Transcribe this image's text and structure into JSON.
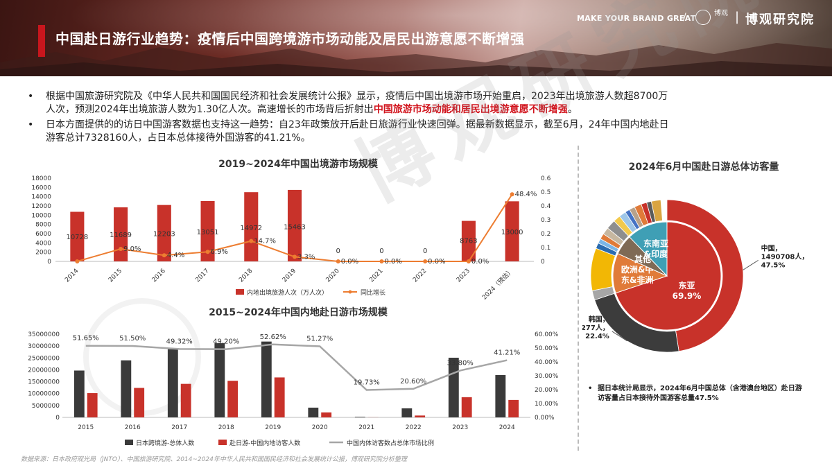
{
  "header": {
    "title": "中国赴日游行业趋势：疫情后中国跨境游市场动能及居民出游意愿不断增强",
    "slogan": "MAKE YOUR BRAND GREAT",
    "slash": "/",
    "logo_text": "博观",
    "separator": "|",
    "brand_name": "博观研究院"
  },
  "bullets": {
    "b1_part1": "根据中国旅游研究院及《中华人民共和国国民经济和社会发展统计公报》显示，疫情后中国出境游市场开始重启，2023年出境旅游人数超8700万人次，预测2024年出境旅游人数为1.30亿人次。高速增长的市场背后折射出",
    "b1_highlight": "中国旅游市场动能和居民出境游意愿不断增强",
    "b1_part2": "。",
    "b2": "日本方面提供的的访日中国游客数据也支持这一趋势：自23年政策放开后赴日旅游行业快速回弹。据最新数据显示，截至6月，24年中国内地赴日游客总计7328160人，占日本总体接待外国游客的41.21%。"
  },
  "chart_titles": {
    "c1": "2019~2024年中国出境游市场规模",
    "c2": "2015~2024年中国内地赴日游市场规模",
    "c3": "2024年6月中国赴日游总体访客量"
  },
  "watermark": "博观研究院",
  "pie_note": "据日本统计局显示，2024年6月中国总体（含港澳台地区）赴日游访客量占日本接待外国游客总量47.5%",
  "source": "数据来源：日本政府观光局（JNTO）、中国旅游研究院、2014~2024年中华人民共和国国民经济和社会发展统计公报，博观研究院分析整理",
  "colors": {
    "red": "#c8322a",
    "orange": "#ed7d31",
    "dark": "#3a3a3a",
    "gray": "#a6a6a6"
  },
  "chart_data": [
    {
      "type": "bar",
      "title": "2019~2024年中国出境游市场规模",
      "categories": [
        "2014",
        "2015",
        "2016",
        "2017",
        "2018",
        "2019",
        "2020",
        "2021",
        "2022",
        "2023",
        "2024（预估）"
      ],
      "series": [
        {
          "name": "内地出境旅游人次（万人次）",
          "kind": "bar",
          "axis": "left",
          "values": [
            10728,
            11689,
            12203,
            13051,
            14972,
            15463,
            0,
            0,
            0,
            8763,
            13000
          ],
          "labels": [
            "10728",
            "11689",
            "12203",
            "13051",
            "14972",
            "15463",
            "0",
            "0",
            "0",
            "8763",
            "13000"
          ]
        },
        {
          "name": "同比增长",
          "kind": "line",
          "axis": "right",
          "values": [
            0,
            0.09,
            0.044,
            0.069,
            0.147,
            0.033,
            0,
            0,
            0,
            0,
            0.484
          ],
          "labels": [
            "",
            "9.0%",
            "4.4%",
            "6.9%",
            "14.7%",
            "3.3%",
            "0.0%",
            "0.0%",
            "0.0%",
            "0.0%",
            "48.4%"
          ]
        }
      ],
      "yticks_left": [
        "0",
        "2000",
        "4000",
        "6000",
        "8000",
        "10000",
        "12000",
        "14000",
        "16000",
        "18000"
      ],
      "yticks_right": [
        "0",
        "0.1",
        "0.2",
        "0.3",
        "0.4",
        "0.5",
        "0.6"
      ],
      "ylim_left": [
        0,
        18000
      ],
      "ylim_right": [
        0,
        0.6
      ]
    },
    {
      "type": "bar",
      "title": "2015~2024年中国内地赴日游市场规模",
      "categories": [
        "2015",
        "2016",
        "2017",
        "2018",
        "2019",
        "2020",
        "2021",
        "2022",
        "2023",
        "2024"
      ],
      "series": [
        {
          "name": "日本跨境游-总体人数",
          "kind": "bar",
          "axis": "left",
          "values": [
            19700000,
            24000000,
            28700000,
            31200000,
            31900000,
            4100000,
            250000,
            3800000,
            25100000,
            17800000
          ]
        },
        {
          "name": "赴日游-中国内地访客人数",
          "kind": "bar",
          "axis": "left",
          "values": [
            10200000,
            12400000,
            14100000,
            15400000,
            16800000,
            2100000,
            50000,
            780000,
            8500000,
            7328160
          ]
        },
        {
          "name": "中国内体访客数占总体市场比例",
          "kind": "line",
          "axis": "right",
          "values": [
            0.5165,
            0.515,
            0.4932,
            0.492,
            0.5262,
            0.5127,
            0.1973,
            0.206,
            0.338,
            0.4121
          ],
          "labels": [
            "51.65%",
            "51.50%",
            "49.32%",
            "49.20%",
            "52.62%",
            "51.27%",
            "19.73%",
            "20.60%",
            "33.80%",
            "41.21%"
          ]
        }
      ],
      "yticks_left": [
        "0",
        "5000000",
        "10000000",
        "15000000",
        "20000000",
        "25000000",
        "30000000",
        "35000000"
      ],
      "yticks_right": [
        "0.00%",
        "10.00%",
        "20.00%",
        "30.00%",
        "40.00%",
        "50.00%",
        "60.00%"
      ],
      "ylim_left": [
        0,
        35000000
      ],
      "ylim_right": [
        0,
        0.6
      ]
    },
    {
      "type": "pie",
      "title": "2024年6月中国赴日游总体访客量",
      "inner": [
        {
          "name": "东亚",
          "share": 0.699,
          "label": "东亚\n69.9%",
          "color": "#c8322a"
        },
        {
          "name": "欧洲&中东&非洲",
          "share": 0.119,
          "label": "欧洲&中\n东&非洲",
          "color": "#e07b39"
        },
        {
          "name": "其他",
          "share": 0.06,
          "label": "其他",
          "color": "#7f6a55"
        },
        {
          "name": "东南亚&印度",
          "share": 0.122,
          "label": "东南亚\n&印度",
          "color": "#3f9fb5"
        }
      ],
      "outer": [
        {
          "name": "中国",
          "share": 0.475,
          "value": 1490708,
          "color": "#c8322a"
        },
        {
          "name": "韩国",
          "share": 0.224,
          "value": 703277,
          "color": "#3c3c3c"
        },
        {
          "name": "other",
          "share": 0.02,
          "color": "#a6a6a6"
        },
        {
          "name": "other",
          "share": 0.09,
          "color": "#f2b705"
        },
        {
          "name": "other",
          "share": 0.012,
          "color": "#2b6cb0"
        },
        {
          "name": "other",
          "share": 0.01,
          "color": "#7cb6e6"
        },
        {
          "name": "other",
          "share": 0.012,
          "color": "#e07b39"
        },
        {
          "name": "other",
          "share": 0.015,
          "color": "#c6b7a0"
        },
        {
          "name": "other",
          "share": 0.02,
          "color": "#8e8e8e"
        },
        {
          "name": "other",
          "share": 0.015,
          "color": "#f2c94c"
        },
        {
          "name": "other",
          "share": 0.015,
          "color": "#9ec6e8"
        },
        {
          "name": "other",
          "share": 0.01,
          "color": "#4472c4"
        },
        {
          "name": "other",
          "share": 0.012,
          "color": "#b7a18a"
        },
        {
          "name": "other",
          "share": 0.015,
          "color": "#e07b39"
        },
        {
          "name": "other",
          "share": 0.012,
          "color": "#c8322a"
        },
        {
          "name": "other",
          "share": 0.01,
          "color": "#5b5b5b"
        },
        {
          "name": "other",
          "share": 0.02,
          "color": "#d9a441"
        }
      ],
      "callouts": [
        {
          "target": "中国",
          "text": "中国，\n1490708人，\n47.5%"
        },
        {
          "target": "韩国",
          "text": "韩国，\n703277人，\n22.4%"
        }
      ]
    }
  ]
}
